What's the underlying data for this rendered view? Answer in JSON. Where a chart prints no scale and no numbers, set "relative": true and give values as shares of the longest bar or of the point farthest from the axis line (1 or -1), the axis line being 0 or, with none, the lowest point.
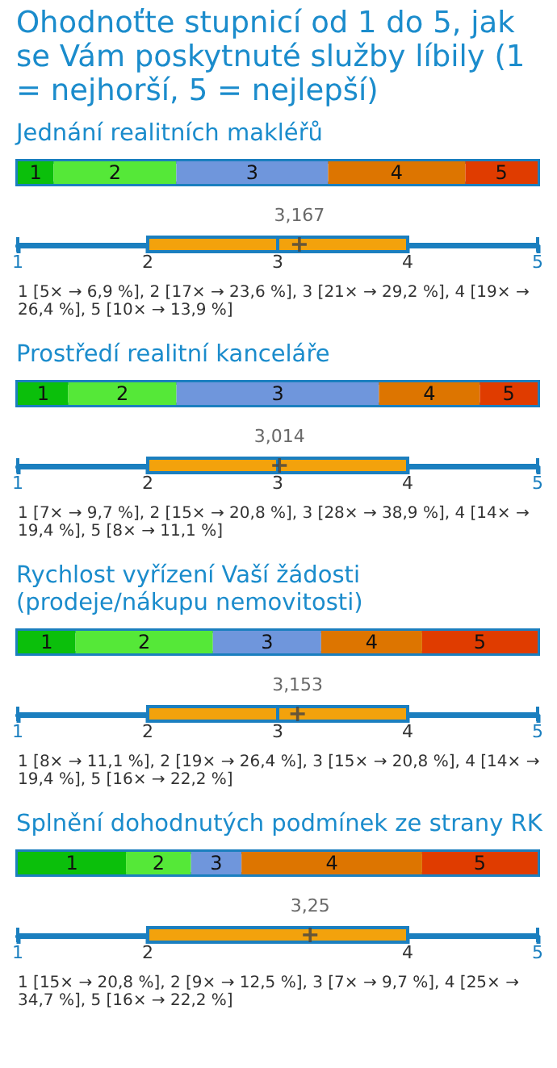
{
  "chart_data": [
    {
      "type": "bar",
      "orientation": "horizontal",
      "stacked": true,
      "relative": true,
      "title": "Ohodnoťte stupnicí od 1 do 5, jak se Vám poskytnuté služby líbily (1 = nejhorší, 5 = nejlepší)",
      "subtitle": "Jednání realitních makléřů",
      "categories": [
        null
      ],
      "series": [
        {
          "name": "1",
          "color": "#0bbf0b",
          "values": [
            0.069
          ]
        },
        {
          "name": "2",
          "color": "#55e838",
          "values": [
            0.236
          ]
        },
        {
          "name": "3",
          "color": "#6f96dc",
          "values": [
            0.292
          ]
        },
        {
          "name": "4",
          "color": "#dd7500",
          "values": [
            0.264
          ]
        },
        {
          "name": "5",
          "color": "#e03c00",
          "values": [
            0.139
          ]
        }
      ]
    },
    {
      "type": "box",
      "orientation": "horizontal",
      "categories": [
        null
      ],
      "color": "#f3a20c",
      "boxes": [
        {
          "low": 1,
          "q1": 2,
          "median": 3,
          "q3": 4,
          "high": 5,
          "mean": 3.167
        }
      ],
      "xlim": [
        1,
        5
      ],
      "xticks": [
        1,
        2,
        3,
        4,
        5
      ],
      "annotations": [
        "3,167",
        "1 [5× → 6,9 %], 2 [17× → 23,6 %], 3 [21× → 29,2 %], 4 [19× → 26,4 %], 5 [10× → 13,9 %]"
      ]
    },
    {
      "type": "bar",
      "orientation": "horizontal",
      "stacked": true,
      "relative": true,
      "title": "Prostředí realitní kanceláře",
      "categories": [
        null
      ],
      "series": [
        {
          "name": "1",
          "color": "#0bbf0b",
          "values": [
            0.0971
          ]
        },
        {
          "name": "2",
          "color": "#55e838",
          "values": [
            0.2082
          ]
        },
        {
          "name": "3",
          "color": "#6f96dc",
          "values": [
            0.3894
          ]
        },
        {
          "name": "4",
          "color": "#dd7500",
          "values": [
            0.1942
          ]
        },
        {
          "name": "5",
          "color": "#e03c00",
          "values": [
            0.1111
          ]
        }
      ]
    },
    {
      "type": "box",
      "orientation": "horizontal",
      "categories": [
        null
      ],
      "color": "#f3a20c",
      "boxes": [
        {
          "low": 1,
          "q1": 2,
          "median": 3,
          "q3": 4,
          "high": 5,
          "mean": 3.014
        }
      ],
      "xlim": [
        1,
        5
      ],
      "xticks": [
        1,
        2,
        3,
        4,
        5
      ],
      "annotations": [
        "3,014",
        "1 [7× → 9,7 %], 2 [15× → 20,8 %], 3 [28× → 38,9 %], 4 [14× → 19,4 %], 5 [8× → 11,1 %]"
      ]
    },
    {
      "type": "bar",
      "orientation": "horizontal",
      "stacked": true,
      "relative": true,
      "title": "Rychlost vyřízení Vaší žádosti (prodeje/nákupu nemovitosti)",
      "categories": [
        null
      ],
      "series": [
        {
          "name": "1",
          "color": "#0bbf0b",
          "values": [
            0.1111
          ]
        },
        {
          "name": "2",
          "color": "#55e838",
          "values": [
            0.2643
          ]
        },
        {
          "name": "3",
          "color": "#6f96dc",
          "values": [
            0.2082
          ]
        },
        {
          "name": "4",
          "color": "#dd7500",
          "values": [
            0.1942
          ]
        },
        {
          "name": "5",
          "color": "#e03c00",
          "values": [
            0.2222
          ]
        }
      ]
    },
    {
      "type": "box",
      "orientation": "horizontal",
      "categories": [
        null
      ],
      "color": "#f3a20c",
      "boxes": [
        {
          "low": 1,
          "q1": 2,
          "median": 3,
          "q3": 4,
          "high": 5,
          "mean": 3.153
        }
      ],
      "xlim": [
        1,
        5
      ],
      "xticks": [
        1,
        2,
        3,
        4,
        5
      ],
      "annotations": [
        "3,153",
        "1 [8× → 11,1 %], 2 [19× → 26,4 %], 3 [15× → 20,8 %], 4 [14× → 19,4 %], 5 [16× → 22,2 %]"
      ]
    },
    {
      "type": "bar",
      "orientation": "horizontal",
      "stacked": true,
      "relative": true,
      "title": "Splnění dohodnutých podmínek ze strany RK",
      "categories": [
        null
      ],
      "series": [
        {
          "name": "1",
          "color": "#0bbf0b",
          "values": [
            0.2082
          ]
        },
        {
          "name": "2",
          "color": "#55e838",
          "values": [
            0.1251
          ]
        },
        {
          "name": "3",
          "color": "#6f96dc",
          "values": [
            0.0971
          ]
        },
        {
          "name": "4",
          "color": "#dd7500",
          "values": [
            0.3474
          ]
        },
        {
          "name": "5",
          "color": "#e03c00",
          "values": [
            0.2222
          ]
        }
      ]
    },
    {
      "type": "box",
      "orientation": "horizontal",
      "categories": [
        null
      ],
      "color": "#f3a20c",
      "boxes": [
        {
          "low": 1,
          "q1": 2,
          "median": 4,
          "q3": 4,
          "high": 5,
          "mean": 3.25
        }
      ],
      "xlim": [
        1,
        5
      ],
      "xticks": [
        1,
        2,
        4,
        5
      ],
      "annotations": [
        "3,25",
        "1 [15× → 20,8 %], 2 [9× → 12,5 %], 3 [7× → 9,7 %], 4 [25× → 34,7 %], 5 [16× → 22,2 %]"
      ]
    }
  ]
}
